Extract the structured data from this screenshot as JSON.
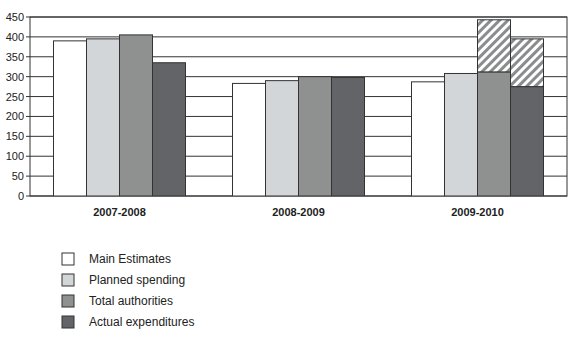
{
  "chart_data": {
    "type": "bar",
    "categories": [
      "2007-2008",
      "2008-2009",
      "2009-2010"
    ],
    "series": [
      {
        "name": "Main Estimates",
        "color": "#ffffff",
        "values": [
          390,
          283,
          287
        ]
      },
      {
        "name": "Planned spending",
        "color": "#d3d6d8",
        "values": [
          395,
          290,
          308
        ]
      },
      {
        "name": "Total authorities",
        "color": "#8e9190",
        "values": [
          405,
          300,
          312
        ],
        "extra_values": [
          null,
          null,
          131
        ]
      },
      {
        "name": "Actual expenditures",
        "color": "#636468",
        "values": [
          335,
          298,
          275
        ],
        "extra_values": [
          null,
          null,
          120
        ]
      }
    ],
    "ylim": [
      0,
      450
    ],
    "yticks": [
      0,
      50,
      100,
      150,
      200,
      250,
      300,
      350,
      400,
      450
    ],
    "grid": true,
    "legend": "bottom"
  }
}
